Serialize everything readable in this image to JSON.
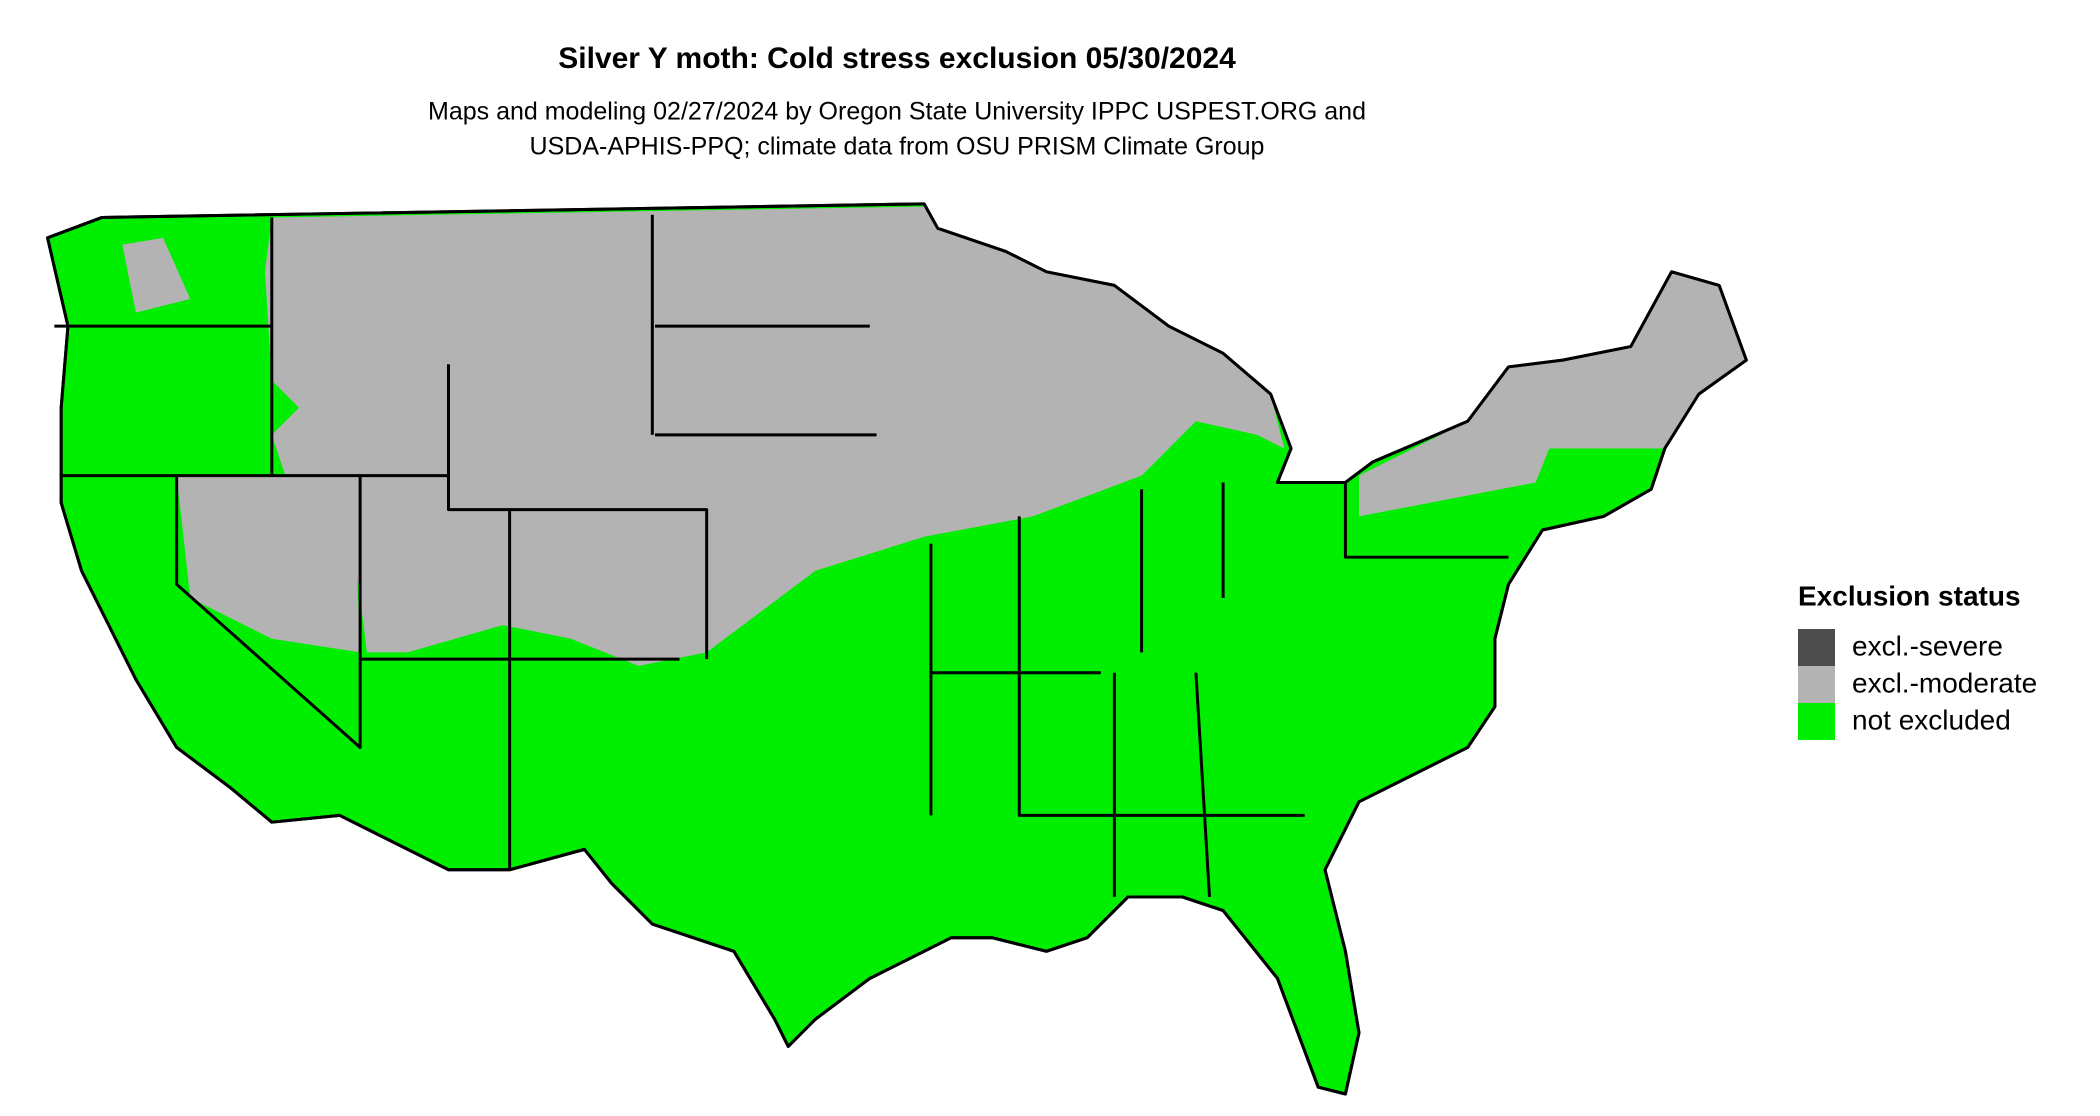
{
  "title": "Silver Y moth: Cold stress exclusion 05/30/2024",
  "subtitle": [
    "Maps and modeling 02/27/2024 by Oregon State University IPPC USPEST.ORG and",
    "USDA-APHIS-PPQ; climate data from OSU PRISM Climate Group"
  ],
  "legend": {
    "title": "Exclusion status",
    "items": [
      {
        "label": "excl.-severe",
        "color": "#4d4d4d"
      },
      {
        "label": "excl.-moderate",
        "color": "#b3b3b3"
      },
      {
        "label": "not excluded",
        "color": "#00ee00"
      }
    ]
  }
}
